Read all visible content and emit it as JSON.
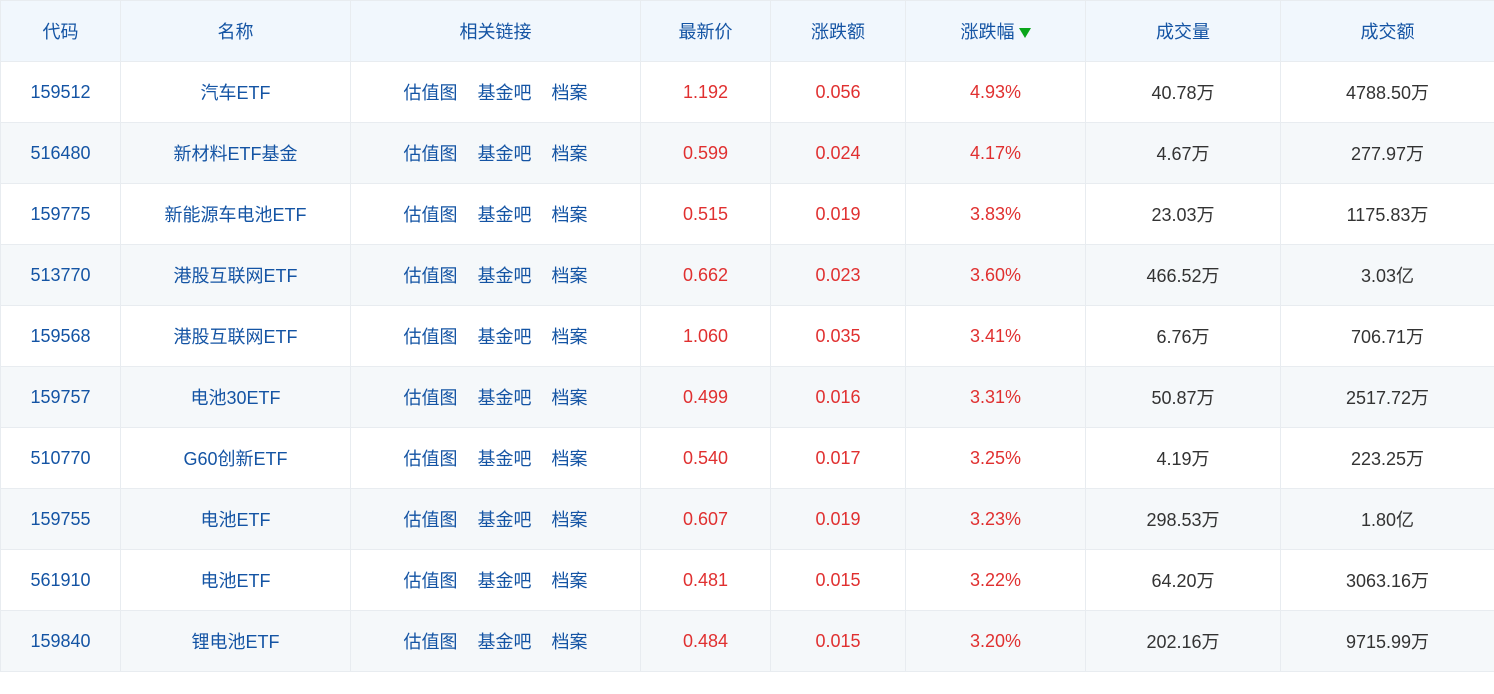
{
  "table": {
    "columns": [
      {
        "key": "code",
        "label": "代码",
        "class": "col-code"
      },
      {
        "key": "name",
        "label": "名称",
        "class": "col-name"
      },
      {
        "key": "links",
        "label": "相关链接",
        "class": "col-links"
      },
      {
        "key": "price",
        "label": "最新价",
        "class": "col-price"
      },
      {
        "key": "change",
        "label": "涨跌额",
        "class": "col-change"
      },
      {
        "key": "pct",
        "label": "涨跌幅",
        "class": "col-pct",
        "sorted": "desc"
      },
      {
        "key": "volume",
        "label": "成交量",
        "class": "col-vol"
      },
      {
        "key": "amount",
        "label": "成交额",
        "class": "col-amt"
      }
    ],
    "link_labels": {
      "chart": "估值图",
      "forum": "基金吧",
      "profile": "档案"
    },
    "colors": {
      "header_bg": "#f1f7fd",
      "header_text": "#1454a4",
      "link": "#1454a4",
      "up": "#e03030",
      "down": "#0aa61b",
      "border": "#e8ecf0",
      "row_alt_bg": "#f5f8fa",
      "row_bg": "#ffffff",
      "text": "#333333",
      "sort_arrow": "#0aa61b"
    },
    "rows": [
      {
        "code": "159512",
        "name": "汽车ETF",
        "price": "1.192",
        "change": "0.056",
        "pct": "4.93%",
        "volume": "40.78万",
        "amount": "4788.50万",
        "dir": "up"
      },
      {
        "code": "516480",
        "name": "新材料ETF基金",
        "price": "0.599",
        "change": "0.024",
        "pct": "4.17%",
        "volume": "4.67万",
        "amount": "277.97万",
        "dir": "up"
      },
      {
        "code": "159775",
        "name": "新能源车电池ETF",
        "price": "0.515",
        "change": "0.019",
        "pct": "3.83%",
        "volume": "23.03万",
        "amount": "1175.83万",
        "dir": "up"
      },
      {
        "code": "513770",
        "name": "港股互联网ETF",
        "price": "0.662",
        "change": "0.023",
        "pct": "3.60%",
        "volume": "466.52万",
        "amount": "3.03亿",
        "dir": "up"
      },
      {
        "code": "159568",
        "name": "港股互联网ETF",
        "price": "1.060",
        "change": "0.035",
        "pct": "3.41%",
        "volume": "6.76万",
        "amount": "706.71万",
        "dir": "up"
      },
      {
        "code": "159757",
        "name": "电池30ETF",
        "price": "0.499",
        "change": "0.016",
        "pct": "3.31%",
        "volume": "50.87万",
        "amount": "2517.72万",
        "dir": "up"
      },
      {
        "code": "510770",
        "name": "G60创新ETF",
        "price": "0.540",
        "change": "0.017",
        "pct": "3.25%",
        "volume": "4.19万",
        "amount": "223.25万",
        "dir": "up"
      },
      {
        "code": "159755",
        "name": "电池ETF",
        "price": "0.607",
        "change": "0.019",
        "pct": "3.23%",
        "volume": "298.53万",
        "amount": "1.80亿",
        "dir": "up"
      },
      {
        "code": "561910",
        "name": "电池ETF",
        "price": "0.481",
        "change": "0.015",
        "pct": "3.22%",
        "volume": "64.20万",
        "amount": "3063.16万",
        "dir": "up"
      },
      {
        "code": "159840",
        "name": "锂电池ETF",
        "price": "0.484",
        "change": "0.015",
        "pct": "3.20%",
        "volume": "202.16万",
        "amount": "9715.99万",
        "dir": "up"
      }
    ]
  }
}
